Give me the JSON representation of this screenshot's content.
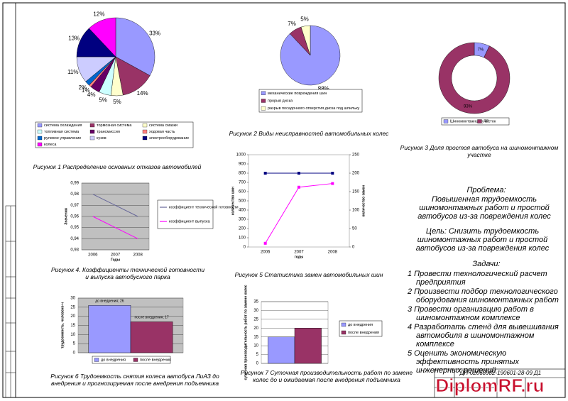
{
  "chart_data": [
    {
      "type": "pie",
      "caption": "Рисунок 1 Распределение основных отказов автомобилей",
      "categories": [
        "система охлаждения",
        "тормозная система",
        "система смазки",
        "топливная система",
        "трансмиссия",
        "ходовая часть",
        "рулевое управление",
        "кузов",
        "электрооборудование",
        "колеса"
      ],
      "values": [
        33,
        14,
        5,
        5,
        4,
        1,
        2,
        11,
        13,
        12
      ],
      "value_labels": [
        "33%",
        "14%",
        "5%",
        "5%",
        "4%",
        "1%",
        "2%",
        "11%",
        "13%",
        "12%"
      ],
      "colors": [
        "#9999ff",
        "#993366",
        "#ffffcc",
        "#ccffff",
        "#660066",
        "#ff8080",
        "#0066cc",
        "#ccccff",
        "#000080",
        "#ff00ff"
      ]
    },
    {
      "type": "pie",
      "caption": "Рисунок 2 Виды неисправностей автомобильных колес",
      "categories": [
        "механические повреждения шин",
        "прорыв диска",
        "разрыв посадочного отверстия диска под шпильку"
      ],
      "values": [
        88,
        7,
        5
      ],
      "value_labels": [
        "88%",
        "7%",
        "5%"
      ],
      "colors": [
        "#9999ff",
        "#993366",
        "#ffffcc"
      ]
    },
    {
      "type": "donut",
      "caption": "Рисунок 3 Доля простоя автобуса на шиномонтажном участке",
      "categories": [
        "Шиномонтажный участок",
        "ТР"
      ],
      "values": [
        7,
        93
      ],
      "value_labels": [
        "7%",
        "93%"
      ],
      "colors": [
        "#9999ff",
        "#993366"
      ]
    },
    {
      "type": "line",
      "caption": "Рисунок 4. Коэффициенты технической готовности и выпуска автобусного парка",
      "x_label": "Годы",
      "y_label": "Значения",
      "categories": [
        "2006",
        "2007",
        "2008"
      ],
      "series": [
        {
          "name": "коэффициент технической готовности",
          "color": "#666699",
          "values": [
            0.98,
            0.97,
            0.96
          ]
        },
        {
          "name": "коэффициент выпуска",
          "color": "#ff00ff",
          "values": [
            0.96,
            0.95,
            0.94
          ]
        }
      ],
      "ylim": [
        0.93,
        0.99
      ],
      "yticks": [
        {
          "value": 0.93,
          "label": "0,93"
        },
        {
          "value": 0.94,
          "label": "0,94"
        },
        {
          "value": 0.95,
          "label": "0,95"
        },
        {
          "value": 0.96,
          "label": "0,96"
        },
        {
          "value": 0.97,
          "label": "0,97"
        },
        {
          "value": 0.98,
          "label": "0,98"
        },
        {
          "value": 0.99,
          "label": "0,99"
        }
      ],
      "grid": true,
      "plot_background": "#c0c0c0",
      "legend": "right"
    },
    {
      "type": "line",
      "caption": "Рисунок 5 Статистика замен автомобильных шин",
      "x_label": "годы",
      "y_label": "количество шин",
      "y2_label": "количество замен",
      "categories": [
        "2006",
        "2007",
        "2008"
      ],
      "series": [
        {
          "color": "#000080",
          "values": [
            800,
            800,
            800
          ],
          "markers": true
        },
        {
          "color": "#ff00ff",
          "values": [
            10,
            162,
            172
          ],
          "axis": "y2",
          "markers": true
        }
      ],
      "ylim": [
        0,
        1000
      ],
      "yticks": [
        0,
        100,
        200,
        300,
        400,
        500,
        600,
        700,
        800,
        900,
        1000
      ],
      "y2lim": [
        0,
        250
      ],
      "y2ticks": [
        0,
        50,
        100,
        150,
        200,
        250
      ],
      "grid": false,
      "plot_background": "#ffffff"
    },
    {
      "type": "bar",
      "caption": "Рисунок 6 Трудоемкость снятия колеса автобуса ЛиАЗ до внедрения и прогнозируемая после внедрения подъемника",
      "y_label": "трудоемкость, человеко-ч",
      "categories": [
        null
      ],
      "series": [
        {
          "name": "до внедрения",
          "color": "#9999ff",
          "values": [
            26
          ],
          "value_labels": [
            "до внедрения; 26"
          ]
        },
        {
          "name": "после внедрения",
          "color": "#993366",
          "values": [
            17
          ],
          "value_labels": [
            "после внедрения; 17"
          ]
        }
      ],
      "ylim": [
        0,
        30
      ],
      "yticks": [
        0,
        5,
        10,
        15,
        20,
        25,
        30
      ],
      "grid": true,
      "plot_background": "#c0c0c0",
      "legend": "bottom"
    },
    {
      "type": "bar",
      "caption": "Рисунок 7 Суточная производительность работ по замене колес до и ожидаемая после внедрения подъемника",
      "y_label": "суточная производительность работ по замене колес",
      "categories": [
        null
      ],
      "series": [
        {
          "name": "до внедрения",
          "color": "#9999ff",
          "values": [
            15
          ]
        },
        {
          "name": "после внедрения",
          "color": "#993366",
          "values": [
            20
          ]
        }
      ],
      "ylim": [
        0,
        35
      ],
      "yticks": [
        0,
        5,
        10,
        15,
        20,
        25,
        30,
        35
      ],
      "grid": true,
      "plot_background": "#ffffff",
      "legend": "right"
    }
  ],
  "notes": {
    "problem_title": "Проблема:",
    "problem": "Повышенная трудоемкость шиномонтажных работ и простой автобусов из-за повреждения колес",
    "goal": "Цель: Снизить трудоемкость шиномонтажных работ и простой автобусов из-за повреждения колес",
    "tasks_title": "Задачи:",
    "tasks": [
      "1 Провести технологический расчет предприятия",
      "2 Произвести подбор технологического оборудования шиномонтажных работ",
      "3 Провести организацию работ в шиномонтажном комплексе",
      "4 Разработать стенд для вывешивания автомобиля в шиномонтажном комплексе",
      "5 Оценить экономическую эффективность принятых инженерных решений"
    ]
  },
  "stamp": {
    "code": "ДП-02068982-190601-28-09 Д1"
  },
  "watermark": "DiplomRF.ru"
}
